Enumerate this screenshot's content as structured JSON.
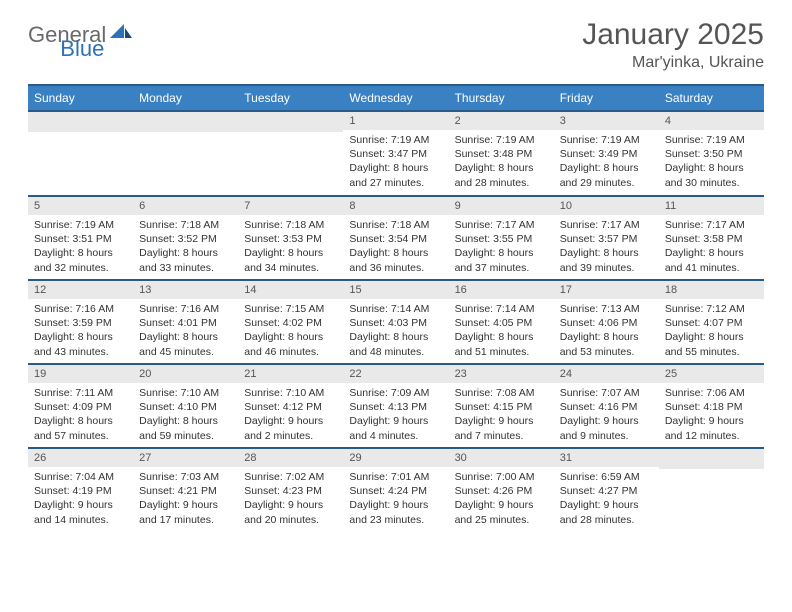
{
  "logo": {
    "general": "General",
    "blue": "Blue"
  },
  "title": "January 2025",
  "location": "Mar'yinka, Ukraine",
  "colors": {
    "header_bg": "#3a81c4",
    "rule": "#2a5a88",
    "daynum_bg": "#e9e9e9",
    "text": "#333333",
    "title_text": "#555555"
  },
  "dow": [
    "Sunday",
    "Monday",
    "Tuesday",
    "Wednesday",
    "Thursday",
    "Friday",
    "Saturday"
  ],
  "weeks": [
    [
      null,
      null,
      null,
      {
        "n": "1",
        "sr": "7:19 AM",
        "ss": "3:47 PM",
        "dl": "8 hours and 27 minutes."
      },
      {
        "n": "2",
        "sr": "7:19 AM",
        "ss": "3:48 PM",
        "dl": "8 hours and 28 minutes."
      },
      {
        "n": "3",
        "sr": "7:19 AM",
        "ss": "3:49 PM",
        "dl": "8 hours and 29 minutes."
      },
      {
        "n": "4",
        "sr": "7:19 AM",
        "ss": "3:50 PM",
        "dl": "8 hours and 30 minutes."
      }
    ],
    [
      {
        "n": "5",
        "sr": "7:19 AM",
        "ss": "3:51 PM",
        "dl": "8 hours and 32 minutes."
      },
      {
        "n": "6",
        "sr": "7:18 AM",
        "ss": "3:52 PM",
        "dl": "8 hours and 33 minutes."
      },
      {
        "n": "7",
        "sr": "7:18 AM",
        "ss": "3:53 PM",
        "dl": "8 hours and 34 minutes."
      },
      {
        "n": "8",
        "sr": "7:18 AM",
        "ss": "3:54 PM",
        "dl": "8 hours and 36 minutes."
      },
      {
        "n": "9",
        "sr": "7:17 AM",
        "ss": "3:55 PM",
        "dl": "8 hours and 37 minutes."
      },
      {
        "n": "10",
        "sr": "7:17 AM",
        "ss": "3:57 PM",
        "dl": "8 hours and 39 minutes."
      },
      {
        "n": "11",
        "sr": "7:17 AM",
        "ss": "3:58 PM",
        "dl": "8 hours and 41 minutes."
      }
    ],
    [
      {
        "n": "12",
        "sr": "7:16 AM",
        "ss": "3:59 PM",
        "dl": "8 hours and 43 minutes."
      },
      {
        "n": "13",
        "sr": "7:16 AM",
        "ss": "4:01 PM",
        "dl": "8 hours and 45 minutes."
      },
      {
        "n": "14",
        "sr": "7:15 AM",
        "ss": "4:02 PM",
        "dl": "8 hours and 46 minutes."
      },
      {
        "n": "15",
        "sr": "7:14 AM",
        "ss": "4:03 PM",
        "dl": "8 hours and 48 minutes."
      },
      {
        "n": "16",
        "sr": "7:14 AM",
        "ss": "4:05 PM",
        "dl": "8 hours and 51 minutes."
      },
      {
        "n": "17",
        "sr": "7:13 AM",
        "ss": "4:06 PM",
        "dl": "8 hours and 53 minutes."
      },
      {
        "n": "18",
        "sr": "7:12 AM",
        "ss": "4:07 PM",
        "dl": "8 hours and 55 minutes."
      }
    ],
    [
      {
        "n": "19",
        "sr": "7:11 AM",
        "ss": "4:09 PM",
        "dl": "8 hours and 57 minutes."
      },
      {
        "n": "20",
        "sr": "7:10 AM",
        "ss": "4:10 PM",
        "dl": "8 hours and 59 minutes."
      },
      {
        "n": "21",
        "sr": "7:10 AM",
        "ss": "4:12 PM",
        "dl": "9 hours and 2 minutes."
      },
      {
        "n": "22",
        "sr": "7:09 AM",
        "ss": "4:13 PM",
        "dl": "9 hours and 4 minutes."
      },
      {
        "n": "23",
        "sr": "7:08 AM",
        "ss": "4:15 PM",
        "dl": "9 hours and 7 minutes."
      },
      {
        "n": "24",
        "sr": "7:07 AM",
        "ss": "4:16 PM",
        "dl": "9 hours and 9 minutes."
      },
      {
        "n": "25",
        "sr": "7:06 AM",
        "ss": "4:18 PM",
        "dl": "9 hours and 12 minutes."
      }
    ],
    [
      {
        "n": "26",
        "sr": "7:04 AM",
        "ss": "4:19 PM",
        "dl": "9 hours and 14 minutes."
      },
      {
        "n": "27",
        "sr": "7:03 AM",
        "ss": "4:21 PM",
        "dl": "9 hours and 17 minutes."
      },
      {
        "n": "28",
        "sr": "7:02 AM",
        "ss": "4:23 PM",
        "dl": "9 hours and 20 minutes."
      },
      {
        "n": "29",
        "sr": "7:01 AM",
        "ss": "4:24 PM",
        "dl": "9 hours and 23 minutes."
      },
      {
        "n": "30",
        "sr": "7:00 AM",
        "ss": "4:26 PM",
        "dl": "9 hours and 25 minutes."
      },
      {
        "n": "31",
        "sr": "6:59 AM",
        "ss": "4:27 PM",
        "dl": "9 hours and 28 minutes."
      },
      null
    ]
  ],
  "labels": {
    "sunrise": "Sunrise: ",
    "sunset": "Sunset: ",
    "daylight": "Daylight: "
  }
}
